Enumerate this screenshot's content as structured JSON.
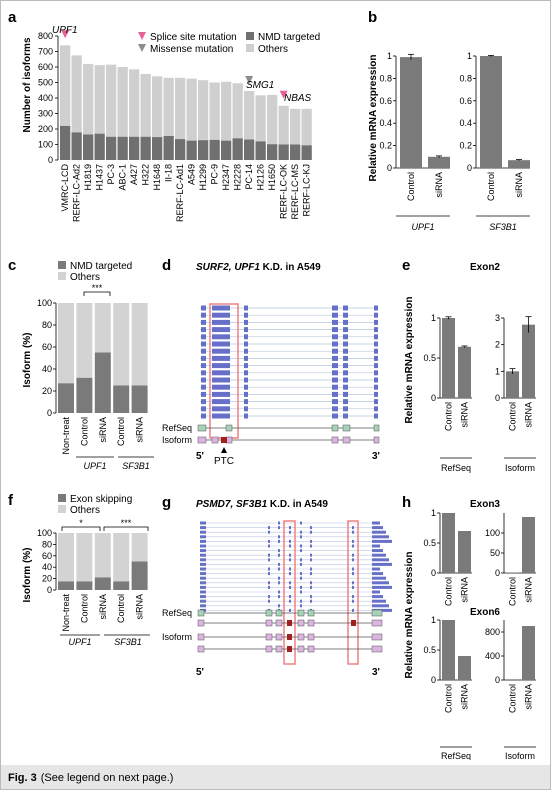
{
  "caption": {
    "label": "Fig. 3",
    "text": "(See legend on next page.)"
  },
  "panels": {
    "a": {
      "letter": "a",
      "ylabel": "Number of isoforms",
      "annotations": {
        "upf1": "UPF1",
        "smg1": "SMG1",
        "nbas": "NBAS"
      },
      "legend": {
        "splice": "Splice site mutation",
        "missense": "Missense mutation",
        "nmd": "NMD targeted",
        "others": "Others"
      }
    },
    "b": {
      "letter": "b",
      "ylabel": "Relative mRNA expression",
      "gene1": "UPF1",
      "gene2": "SF3B1"
    },
    "c": {
      "letter": "c",
      "ylabel": "Isoform (%)",
      "legend": {
        "nmd": "NMD targeted",
        "others": "Others"
      },
      "sig": "***",
      "groups": {
        "upf1": "UPF1",
        "sf3b1": "SF3B1"
      }
    },
    "d": {
      "letter": "d",
      "title_italic": "SURF2, UPF1",
      "title_rest": " K.D. in A549",
      "refseq": "RefSeq",
      "isoform": "Isoform",
      "five": "5'",
      "three": "3'",
      "ptc": "PTC"
    },
    "e": {
      "letter": "e",
      "title": "Exon2",
      "ylabel": "Relative mRNA expression",
      "group1": "RefSeq",
      "group2": "Isoform"
    },
    "f": {
      "letter": "f",
      "ylabel": "Isoform (%)",
      "legend": {
        "skip": "Exon skipping",
        "others": "Others"
      },
      "sig1": "*",
      "sig2": "***",
      "groups": {
        "upf1": "UPF1",
        "sf3b1": "SF3B1"
      }
    },
    "g": {
      "letter": "g",
      "title_italic": "PSMD7, SF3B1",
      "title_rest": " K.D. in A549",
      "refseq": "RefSeq",
      "isoform": "Isoform",
      "five": "5'",
      "three": "3'"
    },
    "h": {
      "letter": "h",
      "title1": "Exon3",
      "title2": "Exon6",
      "ylabel": "Relative mRNA expression",
      "group1": "RefSeq",
      "group2": "Isoform"
    }
  },
  "chart_data": [
    {
      "id": "a",
      "type": "bar",
      "categories": [
        "VMRC-LCD",
        "RERF-LC-Ad2",
        "H1819",
        "H1437",
        "PC-3",
        "ABC-1",
        "A427",
        "H322",
        "H1648",
        "II-18",
        "RERF-LC-Ad1",
        "A549",
        "H1299",
        "PC-9",
        "H2347",
        "H2228",
        "PC-14",
        "H2126",
        "H1650",
        "RERF-LC-OK",
        "RERF-LC-MS",
        "RERF-LC-KJ"
      ],
      "series": [
        {
          "name": "NMD targeted",
          "values": [
            220,
            178,
            165,
            170,
            150,
            150,
            150,
            150,
            148,
            155,
            135,
            125,
            128,
            130,
            125,
            140,
            132,
            120,
            102,
            100,
            100,
            95
          ],
          "color": "#707070"
        },
        {
          "name": "Others",
          "values": [
            520,
            497,
            455,
            442,
            465,
            450,
            435,
            405,
            392,
            375,
            395,
            400,
            387,
            370,
            380,
            355,
            313,
            297,
            318,
            250,
            230,
            235
          ],
          "color": "#cfcfcf"
        }
      ],
      "ylim": [
        0,
        800
      ],
      "yticks": [
        0,
        100,
        200,
        300,
        400,
        500,
        600,
        700,
        800
      ],
      "markers": [
        {
          "index": 0,
          "kind": "splice"
        },
        {
          "index": 16,
          "kind": "missense"
        },
        {
          "index": 19,
          "kind": "splice"
        }
      ]
    },
    {
      "id": "b1",
      "type": "bar",
      "categories": [
        "Control",
        "siRNA"
      ],
      "values": [
        0.99,
        0.1
      ],
      "ylim": [
        0,
        1
      ],
      "yticks": [
        0,
        0.2,
        0.4,
        0.6,
        0.8,
        1
      ],
      "ytick_labels": [
        "0",
        "0.2",
        "0.4",
        "0.6",
        "0.8",
        "1"
      ]
    },
    {
      "id": "b2",
      "type": "bar",
      "categories": [
        "Control",
        "siRNA"
      ],
      "values": [
        1.0,
        0.07
      ],
      "ylim": [
        0,
        1
      ],
      "yticks": [
        0,
        0.2,
        0.4,
        0.6,
        0.8,
        1
      ],
      "ytick_labels": [
        "0",
        "0.2",
        "0.4",
        "0.6",
        "0.8",
        "1"
      ]
    },
    {
      "id": "c",
      "type": "bar",
      "categories": [
        "Non-treat",
        "Control",
        "siRNA",
        "Control",
        "siRNA"
      ],
      "series": [
        {
          "name": "NMD targeted",
          "values": [
            27,
            32,
            55,
            25,
            25
          ]
        },
        {
          "name": "Others",
          "values": [
            73,
            68,
            45,
            75,
            75
          ]
        }
      ],
      "ylim": [
        0,
        100
      ],
      "yticks": [
        0,
        20,
        40,
        60,
        80,
        100
      ]
    },
    {
      "id": "e1",
      "type": "bar",
      "categories": [
        "Control",
        "siRNA"
      ],
      "values": [
        1.0,
        0.64
      ],
      "ylim": [
        0,
        1
      ],
      "yticks": [
        0,
        0.5,
        1
      ],
      "ytick_labels": [
        "0",
        "0.5",
        "1"
      ]
    },
    {
      "id": "e2",
      "type": "bar",
      "categories": [
        "Control",
        "siRNA"
      ],
      "values": [
        1.0,
        2.75
      ],
      "ylim": [
        0,
        3
      ],
      "yticks": [
        0,
        1,
        2,
        3
      ],
      "ytick_labels": [
        "0",
        "1",
        "2",
        "3"
      ]
    },
    {
      "id": "f",
      "type": "bar",
      "categories": [
        "Non-treat",
        "Control",
        "siRNA",
        "Control",
        "siRNA"
      ],
      "series": [
        {
          "name": "Exon skipping",
          "values": [
            15,
            15,
            22,
            15,
            50
          ]
        },
        {
          "name": "Others",
          "values": [
            85,
            85,
            78,
            85,
            50
          ]
        }
      ],
      "ylim": [
        0,
        100
      ],
      "yticks": [
        0,
        20,
        40,
        60,
        80,
        100
      ]
    },
    {
      "id": "h1",
      "type": "bar",
      "categories": [
        "Control",
        "siRNA"
      ],
      "values": [
        1.0,
        0.7
      ],
      "ylim": [
        0,
        1
      ],
      "yticks": [
        0,
        0.5,
        1
      ],
      "ytick_labels": [
        "0",
        "0.5",
        "1"
      ]
    },
    {
      "id": "h2",
      "type": "bar",
      "categories": [
        "Control",
        "siRNA"
      ],
      "values": [
        1,
        140
      ],
      "ylim": [
        0,
        150
      ],
      "yticks": [
        0,
        50,
        100
      ],
      "ytick_labels": [
        "0",
        "50",
        "100"
      ]
    },
    {
      "id": "h3",
      "type": "bar",
      "categories": [
        "Control",
        "siRNA"
      ],
      "values": [
        1.0,
        0.4
      ],
      "ylim": [
        0,
        1
      ],
      "yticks": [
        0,
        0.5,
        1
      ],
      "ytick_labels": [
        "0",
        "0.5",
        "1"
      ]
    },
    {
      "id": "h4",
      "type": "bar",
      "categories": [
        "Control",
        "siRNA"
      ],
      "values": [
        1,
        900
      ],
      "ylim": [
        0,
        1000
      ],
      "yticks": [
        0,
        400,
        800
      ],
      "ytick_labels": [
        "0",
        "400",
        "800"
      ]
    }
  ]
}
